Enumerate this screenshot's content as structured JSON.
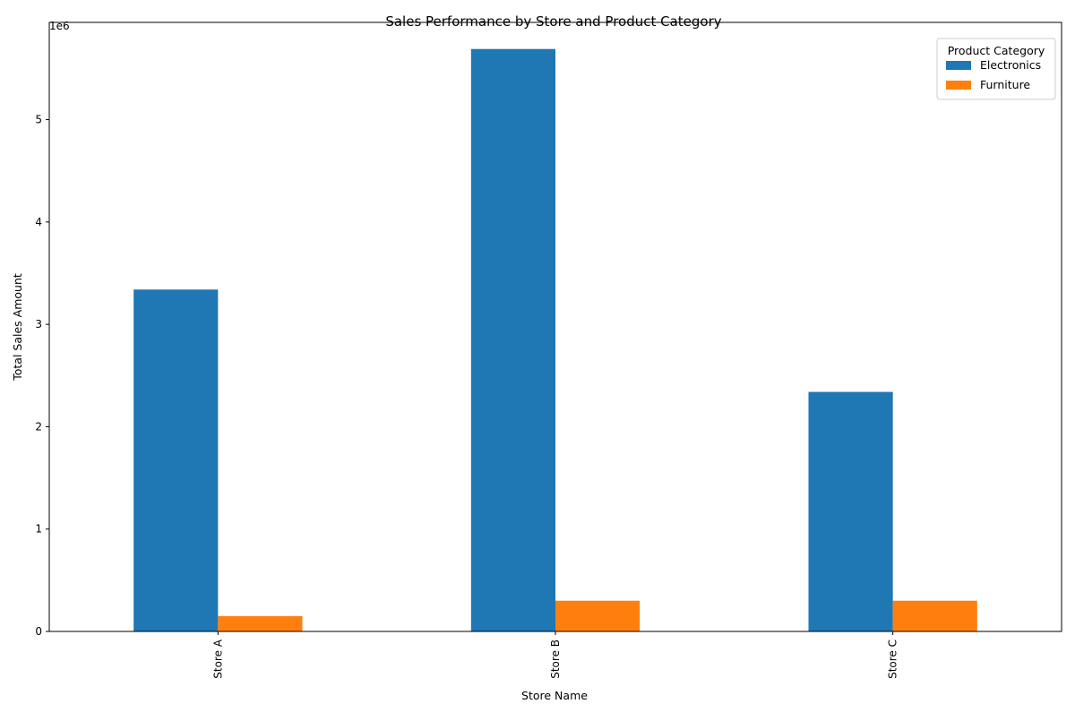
{
  "chart_data": {
    "type": "bar",
    "title": "Sales Performance by Store and Product Category",
    "xlabel": "Store Name",
    "ylabel": "Total Sales Amount",
    "y_scale_label": "1e6",
    "categories": [
      "Store A",
      "Store B",
      "Store C"
    ],
    "series": [
      {
        "name": "Electronics",
        "color": "#1f77b4",
        "values": [
          3340000,
          5690000,
          2340000
        ]
      },
      {
        "name": "Furniture",
        "color": "#ff7f0e",
        "values": [
          150000,
          300000,
          300000
        ]
      }
    ],
    "ylim": [
      0,
      5950000
    ],
    "y_ticks": [
      0,
      1,
      2,
      3,
      4,
      5
    ],
    "y_tick_multiplier": 1000000,
    "legend": {
      "title": "Product Category",
      "placement": "top-right"
    },
    "grid": false
  }
}
